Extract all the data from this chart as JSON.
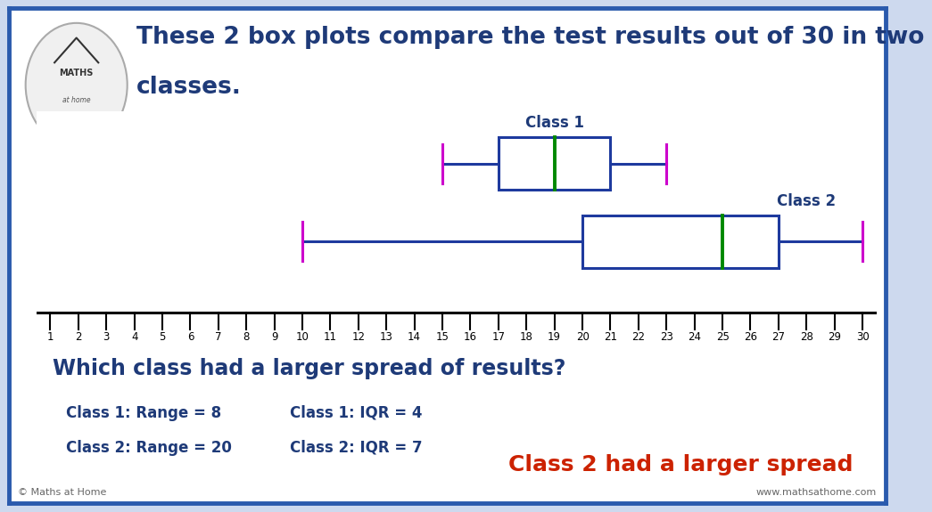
{
  "title_line1": "These 2 box plots compare the test results out of 30 in two",
  "title_line2": "classes.",
  "title_color": "#1e3a78",
  "title_fontsize": 19,
  "bg_color": "#cdd9ee",
  "inner_bg_color": "#ffffff",
  "border_color": "#2a5aad",
  "axis_min": 1,
  "axis_max": 30,
  "class1": {
    "label": "Class 1",
    "min": 15,
    "q1": 17,
    "median": 19,
    "q3": 21,
    "max": 23,
    "box_color": "#1e3a9e",
    "median_color": "#008800",
    "end_color": "#cc00cc",
    "label_color": "#1e3a78"
  },
  "class2": {
    "label": "Class 2",
    "min": 10,
    "q1": 20,
    "median": 25,
    "q3": 27,
    "max": 30,
    "box_color": "#1e3a9e",
    "median_color": "#008800",
    "end_color": "#cc00cc",
    "label_color": "#1e3a78"
  },
  "question": "Which class had a larger spread of results?",
  "question_color": "#1e3a78",
  "question_fontsize": 17,
  "stat_fontsize": 12,
  "stats_col1": [
    {
      "text": "Class 1: Range = 8",
      "color": "#1e3a78"
    },
    {
      "text": "Class 2: Range = 20",
      "color": "#1e3a78"
    }
  ],
  "stats_col2": [
    {
      "text": "Class 1: IQR = 4",
      "color": "#1e3a78"
    },
    {
      "text": "Class 2: IQR = 7",
      "color": "#1e3a78"
    }
  ],
  "answer": "Class 2 had a larger spread",
  "answer_color": "#cc2200",
  "answer_fontsize": 18,
  "footer_left": "© Maths at Home",
  "footer_right": "www.mathsathome.com",
  "footer_color": "#666666",
  "footer_fontsize": 8
}
